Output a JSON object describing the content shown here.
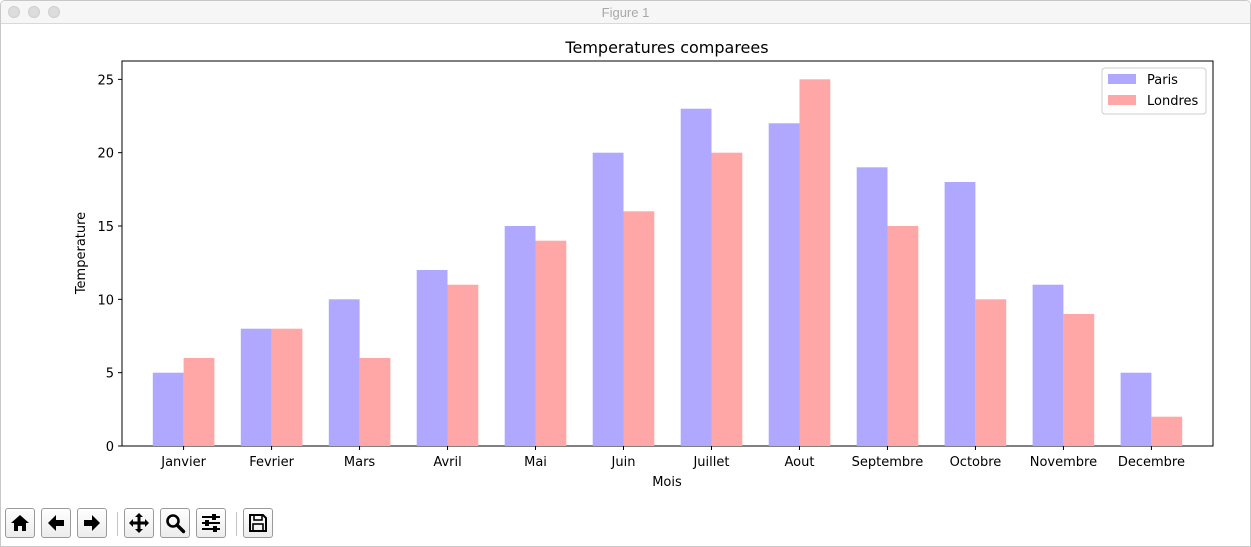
{
  "window": {
    "title": "Figure 1"
  },
  "toolbar": {
    "buttons": [
      {
        "name": "home-button",
        "icon": "home-icon"
      },
      {
        "name": "back-button",
        "icon": "arrow-left-icon"
      },
      {
        "name": "forward-button",
        "icon": "arrow-right-icon"
      },
      {
        "name": "pan-button",
        "icon": "move-icon"
      },
      {
        "name": "zoom-button",
        "icon": "magnifier-icon"
      },
      {
        "name": "subplots-button",
        "icon": "sliders-icon"
      },
      {
        "name": "save-button",
        "icon": "floppy-disk-icon"
      }
    ]
  },
  "chart_data": {
    "type": "bar",
    "title": "Temperatures comparees",
    "xlabel": "Mois",
    "ylabel": "Temperature",
    "categories": [
      "Janvier",
      "Fevrier",
      "Mars",
      "Avril",
      "Mai",
      "Juin",
      "Juillet",
      "Aout",
      "Septembre",
      "Octobre",
      "Novembre",
      "Decembre"
    ],
    "series": [
      {
        "name": "Paris",
        "color": "#b0a8ff",
        "values": [
          5,
          8,
          10,
          12,
          15,
          20,
          23,
          22,
          19,
          18,
          11,
          5
        ]
      },
      {
        "name": "Londres",
        "color": "#ffa6a6",
        "values": [
          6,
          8,
          6,
          11,
          14,
          16,
          20,
          25,
          15,
          10,
          9,
          2
        ]
      }
    ],
    "ylim": [
      0,
      26.25
    ],
    "yticks": [
      "0",
      "5",
      "10",
      "15",
      "20",
      "25"
    ],
    "grid": false,
    "legend": "top-right"
  }
}
